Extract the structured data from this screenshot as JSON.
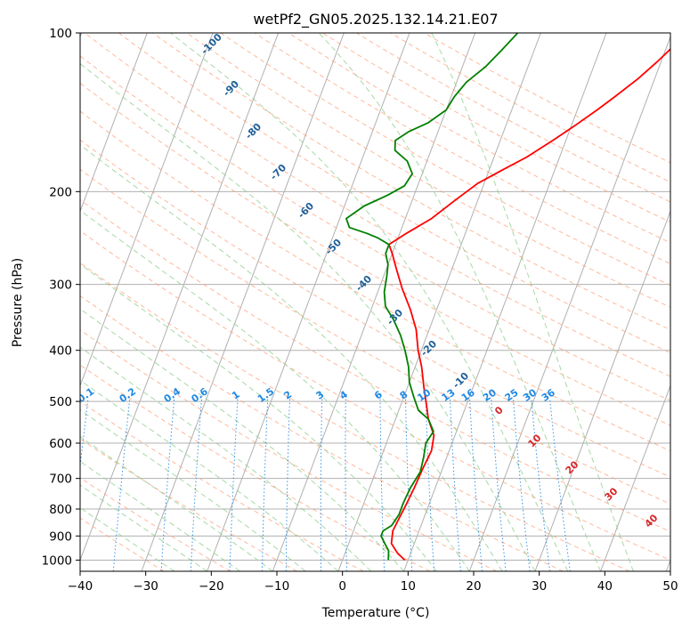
{
  "chart_data": {
    "type": "line",
    "title": "wetPf2_GN05.2025.132.14.21.E07",
    "xlabel": "Temperature (°C)",
    "ylabel": "Pressure (hPa)",
    "xlim": [
      -40,
      50
    ],
    "ylim": [
      1050,
      100
    ],
    "y_scale": "log",
    "grid": true,
    "x_ticks": [
      "−40",
      "−30",
      "−20",
      "−10",
      "0",
      "10",
      "20",
      "30",
      "40",
      "50"
    ],
    "y_ticks": [
      {
        "value": 100,
        "label": "100"
      },
      {
        "value": 200,
        "label": "200"
      },
      {
        "value": 300,
        "label": "300"
      },
      {
        "value": 400,
        "label": "400"
      },
      {
        "value": 500,
        "label": "500"
      },
      {
        "value": 600,
        "label": "600"
      },
      {
        "value": 700,
        "label": "700"
      },
      {
        "value": 800,
        "label": "800"
      },
      {
        "value": 900,
        "label": "900"
      },
      {
        "value": 1000,
        "label": "1000"
      }
    ],
    "series": [
      {
        "color": "#ff0000",
        "description": "temperature profile",
        "points": [
          [
            9.5,
            1000
          ],
          [
            8,
            970
          ],
          [
            6.5,
            930
          ],
          [
            6,
            880
          ],
          [
            6.2,
            840
          ],
          [
            6.5,
            790
          ],
          [
            6.8,
            730
          ],
          [
            7,
            670
          ],
          [
            7.3,
            620
          ],
          [
            6.8,
            580
          ],
          [
            5,
            540
          ],
          [
            4,
            510
          ],
          [
            2.5,
            470
          ],
          [
            1,
            430
          ],
          [
            -0.5,
            400
          ],
          [
            -2,
            365
          ],
          [
            -4,
            335
          ],
          [
            -6.5,
            305
          ],
          [
            -8.5,
            280
          ],
          [
            -10,
            262
          ],
          [
            -11,
            252
          ],
          [
            -9,
            240
          ],
          [
            -6,
            225
          ],
          [
            -3.5,
            208
          ],
          [
            -1,
            193
          ],
          [
            2,
            182
          ],
          [
            5,
            172
          ],
          [
            8,
            160
          ],
          [
            10.5,
            150
          ],
          [
            13,
            140
          ],
          [
            15,
            132
          ],
          [
            17.5,
            122
          ],
          [
            19.5,
            113
          ],
          [
            21,
            106
          ],
          [
            23,
            100
          ]
        ]
      },
      {
        "color": "#008000",
        "description": "dewpoint profile",
        "points": [
          [
            7,
            1000
          ],
          [
            6.5,
            960
          ],
          [
            5.5,
            930
          ],
          [
            4.5,
            900
          ],
          [
            4.5,
            880
          ],
          [
            5.5,
            860
          ],
          [
            6,
            820
          ],
          [
            6,
            780
          ],
          [
            6.2,
            730
          ],
          [
            6.8,
            680
          ],
          [
            6.5,
            640
          ],
          [
            6,
            600
          ],
          [
            6.5,
            570
          ],
          [
            5,
            540
          ],
          [
            3,
            520
          ],
          [
            1.5,
            490
          ],
          [
            0,
            460
          ],
          [
            -1,
            430
          ],
          [
            -2.5,
            400
          ],
          [
            -4,
            375
          ],
          [
            -6,
            350
          ],
          [
            -8,
            330
          ],
          [
            -9,
            310
          ],
          [
            -9.5,
            290
          ],
          [
            -10,
            275
          ],
          [
            -11,
            262
          ],
          [
            -11,
            252
          ],
          [
            -13,
            245
          ],
          [
            -15,
            240
          ],
          [
            -18,
            234
          ],
          [
            -19,
            225
          ],
          [
            -17,
            213
          ],
          [
            -14,
            203
          ],
          [
            -12,
            195
          ],
          [
            -11.5,
            185
          ],
          [
            -13,
            175
          ],
          [
            -15.5,
            167
          ],
          [
            -16,
            160
          ],
          [
            -14.5,
            154
          ],
          [
            -12,
            148
          ],
          [
            -10,
            140
          ],
          [
            -9.5,
            132
          ],
          [
            -8.5,
            124
          ],
          [
            -6.5,
            116
          ],
          [
            -5,
            108
          ],
          [
            -3.5,
            100
          ]
        ]
      }
    ],
    "background": {
      "dry_adiabat_labels": [
        "-100",
        "-90",
        "-80",
        "-70",
        "-60",
        "-50",
        "-40",
        "-30",
        "-20",
        "-10"
      ],
      "moist_adiabat_labels": [
        "0",
        "10",
        "20",
        "30",
        "40"
      ],
      "mixing_ratio_labels": [
        "0.1",
        "0.2",
        "0.4",
        "0.6",
        "1",
        "1.5",
        "2",
        "3",
        "4",
        "6",
        "8",
        "10",
        "13",
        "16",
        "20",
        "25",
        "30",
        "36"
      ],
      "mixing_ratio_values": [
        0.1,
        0.2,
        0.4,
        0.6,
        1,
        1.5,
        2,
        3,
        4,
        6,
        8,
        10,
        13,
        16,
        20,
        25,
        30,
        36
      ],
      "mixing_ratio_label_level_hpa": 500,
      "colors": {
        "isotherm": "#b0b0b0",
        "grid": "#b0b0b0",
        "dry_adiabat": "#ffa07a",
        "moist_adiabat": "#90d090",
        "mixing_ratio": "#1e88e5",
        "zero_label": "#777777",
        "moist_label": "#d62728",
        "dry_label": "#1f5f99"
      }
    }
  }
}
